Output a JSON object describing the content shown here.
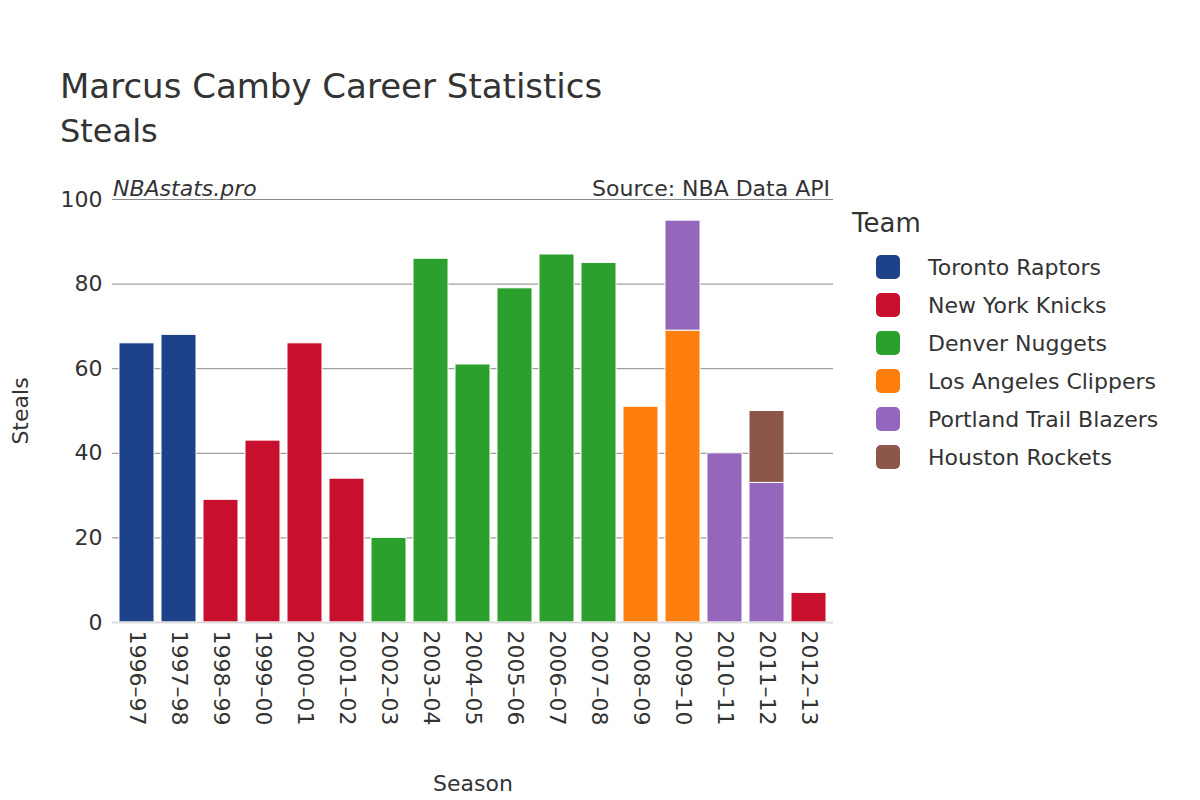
{
  "chart_data": {
    "type": "bar",
    "title": "Marcus Camby Career Statistics",
    "subtitle": "Steals",
    "annotations": [
      "NBAstats.pro",
      "Source: NBA Data API"
    ],
    "x_label": "Season",
    "y_label": "Steals",
    "legend_title": "Team",
    "legend": "right",
    "stacked": true,
    "grid": true,
    "ylim": [
      0,
      100
    ],
    "yticks": [
      0,
      20,
      40,
      60,
      80,
      100
    ],
    "categories": [
      "1996–97",
      "1997–98",
      "1998–99",
      "1999–00",
      "2000–01",
      "2001–02",
      "2002–03",
      "2003–04",
      "2004–05",
      "2005–06",
      "2006–07",
      "2007–08",
      "2008–09",
      "2009–10",
      "2010–11",
      "2011–12",
      "2012–13"
    ],
    "series": [
      {
        "name": "Toronto Raptors",
        "color": "#1d428a",
        "values": [
          66,
          68,
          null,
          null,
          null,
          null,
          null,
          null,
          null,
          null,
          null,
          null,
          null,
          null,
          null,
          null,
          null
        ]
      },
      {
        "name": "New York Knicks",
        "color": "#c8102e",
        "values": [
          null,
          null,
          29,
          43,
          66,
          34,
          null,
          null,
          null,
          null,
          null,
          null,
          null,
          null,
          null,
          null,
          7
        ]
      },
      {
        "name": "Denver Nuggets",
        "color": "#2ca02c",
        "values": [
          null,
          null,
          null,
          null,
          null,
          null,
          20,
          86,
          61,
          79,
          87,
          85,
          null,
          null,
          null,
          null,
          null
        ]
      },
      {
        "name": "Los Angeles Clippers",
        "color": "#ff7f0e",
        "values": [
          null,
          null,
          null,
          null,
          null,
          null,
          null,
          null,
          null,
          null,
          null,
          null,
          51,
          69,
          null,
          null,
          null
        ]
      },
      {
        "name": "Portland Trail Blazers",
        "color": "#9467bd",
        "values": [
          null,
          null,
          null,
          null,
          null,
          null,
          null,
          null,
          null,
          null,
          null,
          null,
          null,
          26,
          40,
          33,
          null
        ]
      },
      {
        "name": "Houston Rockets",
        "color": "#8c564b",
        "values": [
          null,
          null,
          null,
          null,
          null,
          null,
          null,
          null,
          null,
          null,
          null,
          null,
          null,
          null,
          null,
          17,
          null
        ]
      }
    ]
  }
}
